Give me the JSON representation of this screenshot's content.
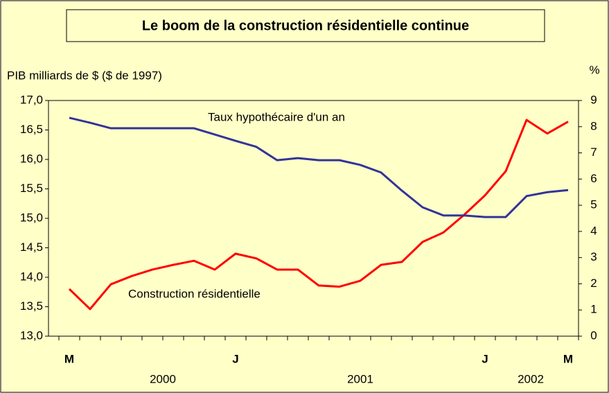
{
  "chart_data": {
    "type": "line",
    "title": "Le boom de la construction résidentielle continue",
    "y_label": "PIB milliards de $ ($ de 1997)",
    "y2_label": "%",
    "categories": [
      "M",
      null,
      null,
      null,
      null,
      null,
      null,
      null,
      "J",
      null,
      null,
      null,
      null,
      null,
      null,
      null,
      null,
      null,
      null,
      null,
      "J",
      null,
      null,
      null,
      "M"
    ],
    "year_labels": [
      {
        "label": "2000",
        "index": 4.5
      },
      {
        "label": "2001",
        "index": 14
      },
      {
        "label": "2002",
        "index": 22.2
      }
    ],
    "series": [
      {
        "name": "Construction résidentielle",
        "color": "#ff0000",
        "axis": "y",
        "values": [
          13.8,
          13.46,
          13.88,
          14.02,
          14.13,
          14.21,
          14.28,
          14.13,
          14.4,
          14.32,
          14.13,
          14.13,
          13.86,
          13.84,
          13.94,
          14.21,
          14.26,
          14.6,
          14.76,
          15.06,
          15.39,
          15.8,
          16.67,
          16.44,
          16.64
        ]
      },
      {
        "name": "Taux hypothécaire d'un an",
        "color": "#333399",
        "axis": "y2",
        "values": [
          8.34,
          8.15,
          7.94,
          7.94,
          7.94,
          7.94,
          7.94,
          7.7,
          7.46,
          7.23,
          6.72,
          6.8,
          6.72,
          6.72,
          6.54,
          6.25,
          5.56,
          4.92,
          4.61,
          4.61,
          4.55,
          4.55,
          5.35,
          5.5,
          5.58
        ]
      }
    ],
    "ylim": [
      13,
      17
    ],
    "yticks": [
      {
        "value": 13,
        "label": "13,0"
      },
      {
        "value": 13.5,
        "label": "13,5"
      },
      {
        "value": 14,
        "label": "14,0"
      },
      {
        "value": 14.5,
        "label": "14,5"
      },
      {
        "value": 15,
        "label": "15,0"
      },
      {
        "value": 15.5,
        "label": "15,5"
      },
      {
        "value": 16,
        "label": "16,0"
      },
      {
        "value": 16.5,
        "label": "16,5"
      },
      {
        "value": 17,
        "label": "17,0"
      }
    ],
    "y2lim": [
      0,
      9
    ],
    "y2ticks": [
      0,
      1,
      2,
      3,
      4,
      5,
      6,
      7,
      8,
      9
    ]
  }
}
